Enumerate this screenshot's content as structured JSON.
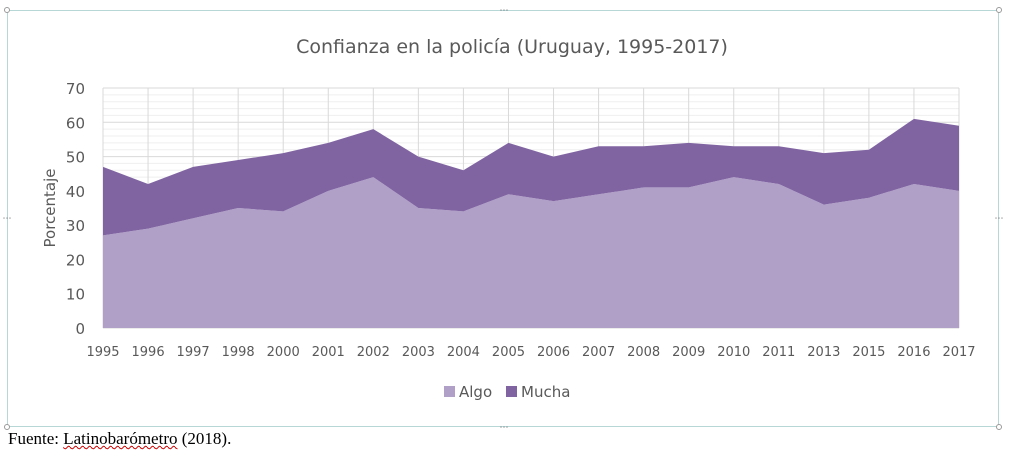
{
  "chart_data": {
    "type": "area",
    "stacked": true,
    "title": "Confianza en la policía (Uruguay, 1995-2017)",
    "xlabel": "",
    "ylabel": "Porcentaje",
    "ylim": [
      0,
      70
    ],
    "yticks": [
      0,
      10,
      20,
      30,
      40,
      50,
      60,
      70
    ],
    "grid": true,
    "legend_position": "bottom",
    "categories": [
      "1995",
      "1996",
      "1997",
      "1998",
      "2000",
      "2001",
      "2002",
      "2003",
      "2004",
      "2005",
      "2006",
      "2007",
      "2008",
      "2009",
      "2010",
      "2011",
      "2013",
      "2015",
      "2016",
      "2017"
    ],
    "series": [
      {
        "name": "Algo",
        "color": "#b0a0c8",
        "values": [
          27,
          29,
          32,
          35,
          34,
          40,
          44,
          35,
          34,
          39,
          37,
          39,
          41,
          41,
          44,
          42,
          36,
          38,
          42,
          40
        ]
      },
      {
        "name": "Mucha",
        "color": "#8064a2",
        "values": [
          20,
          13,
          15,
          14,
          17,
          14,
          14,
          15,
          12,
          15,
          13,
          14,
          12,
          13,
          9,
          11,
          15,
          14,
          19,
          19
        ]
      }
    ]
  },
  "source": {
    "prefix": "Fuente: ",
    "name": "Latinobarómetro",
    "suffix": " (2018)."
  }
}
